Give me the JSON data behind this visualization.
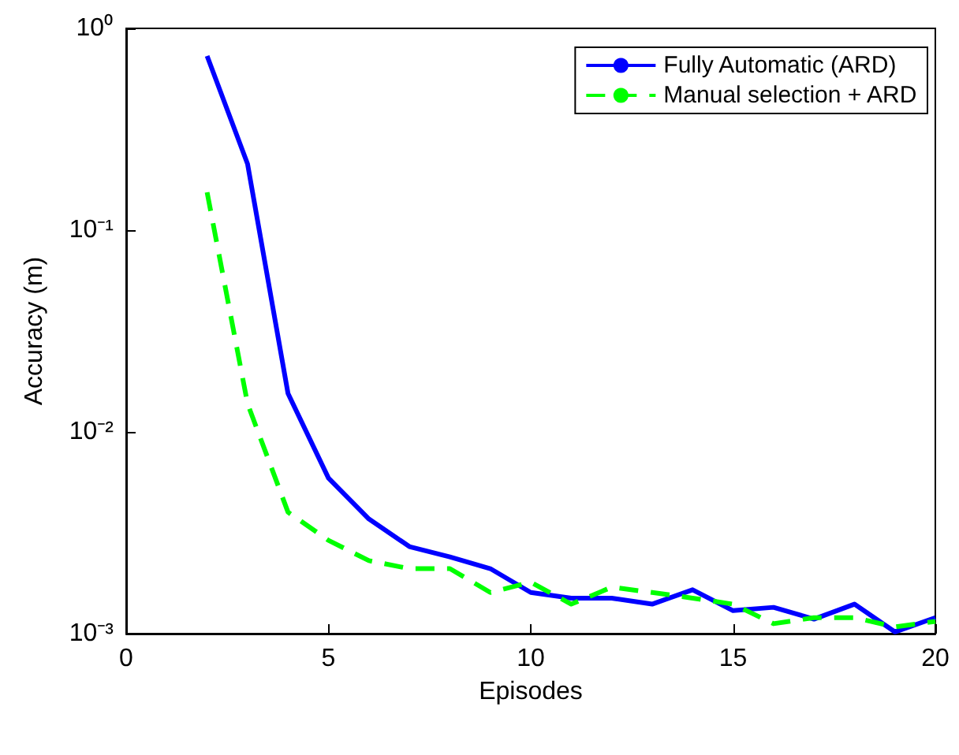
{
  "chart_data": {
    "type": "line",
    "xlabel": "Episodes",
    "ylabel": "Accuracy (m)",
    "x": [
      2,
      3,
      4,
      5,
      6,
      7,
      8,
      9,
      10,
      11,
      12,
      13,
      14,
      15,
      16,
      17,
      18,
      19,
      20
    ],
    "series": [
      {
        "name": "Fully Automatic (ARD)",
        "color": "#0000ff",
        "line_style": "solid",
        "values": [
          0.73,
          0.213,
          0.0155,
          0.0059,
          0.0037,
          0.0027,
          0.0024,
          0.0021,
          0.0016,
          0.0015,
          0.0015,
          0.0014,
          0.00165,
          0.0013,
          0.00135,
          0.00118,
          0.0014,
          0.00102,
          0.0012
        ]
      },
      {
        "name": "Manual selection + ARD",
        "color": "#00ff00",
        "line_style": "dashed",
        "values": [
          0.154,
          0.0138,
          0.004,
          0.0029,
          0.0023,
          0.0021,
          0.0021,
          0.0016,
          0.0018,
          0.0014,
          0.0017,
          0.0016,
          0.0015,
          0.0014,
          0.00112,
          0.0012,
          0.0012,
          0.00108,
          0.00115
        ]
      }
    ],
    "xlim": [
      0,
      20
    ],
    "xticks": [
      0,
      5,
      10,
      15,
      20
    ],
    "log": "y",
    "ylim": [
      0.001,
      1
    ],
    "yticks": [
      {
        "value": 0.001,
        "label": "10⁻³"
      },
      {
        "value": 0.01,
        "label": "10⁻²"
      },
      {
        "value": 0.1,
        "label": "10⁻¹"
      },
      {
        "value": 1,
        "label": "10⁰"
      }
    ],
    "grid": false,
    "legend": "top right",
    "marker": "none"
  }
}
